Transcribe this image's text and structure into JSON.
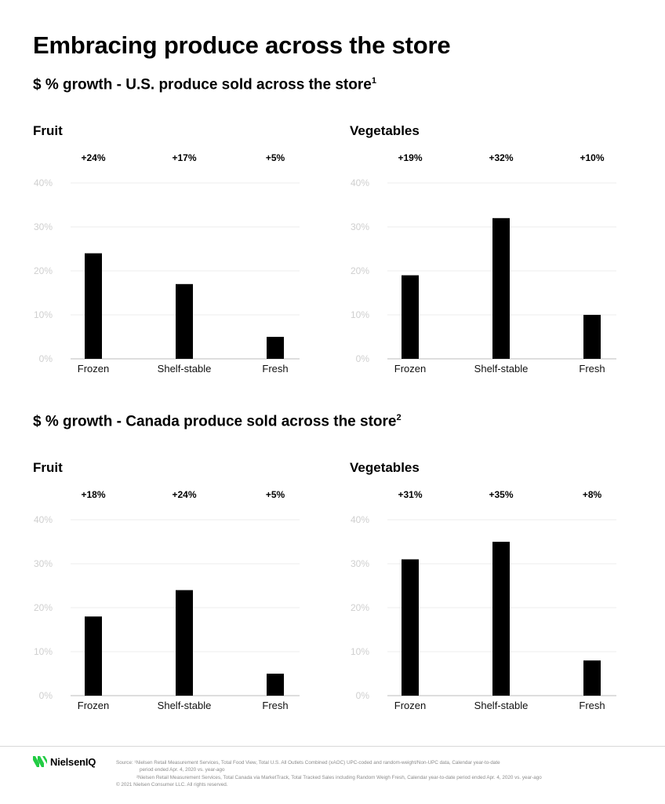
{
  "page": {
    "title": "Embracing produce across the store"
  },
  "sections": [
    {
      "title": "$ % growth - U.S. produce sold across the store",
      "sup": "1"
    },
    {
      "title": "$ % growth - Canada produce sold across the store",
      "sup": "2"
    }
  ],
  "chart_data": [
    {
      "type": "bar",
      "title": "Fruit",
      "categories": [
        "Frozen",
        "Shelf-stable",
        "Fresh"
      ],
      "values": [
        24,
        17,
        5
      ],
      "data_labels": [
        "+24%",
        "+17%",
        "+5%"
      ],
      "yticks": [
        "0%",
        "10%",
        "20%",
        "30%",
        "40%"
      ],
      "ylim": [
        0,
        40
      ],
      "grid": true,
      "color": "#000000"
    },
    {
      "type": "bar",
      "title": "Vegetables",
      "categories": [
        "Frozen",
        "Shelf-stable",
        "Fresh"
      ],
      "values": [
        19,
        32,
        10
      ],
      "data_labels": [
        "+19%",
        "+32%",
        "+10%"
      ],
      "yticks": [
        "0%",
        "10%",
        "20%",
        "30%",
        "40%"
      ],
      "ylim": [
        0,
        40
      ],
      "grid": true,
      "color": "#000000"
    },
    {
      "type": "bar",
      "title": "Fruit",
      "categories": [
        "Frozen",
        "Shelf-stable",
        "Fresh"
      ],
      "values": [
        18,
        24,
        5
      ],
      "data_labels": [
        "+18%",
        "+24%",
        "+5%"
      ],
      "yticks": [
        "0%",
        "10%",
        "20%",
        "30%",
        "40%"
      ],
      "ylim": [
        0,
        40
      ],
      "grid": true,
      "color": "#000000"
    },
    {
      "type": "bar",
      "title": "Vegetables",
      "categories": [
        "Frozen",
        "Shelf-stable",
        "Fresh"
      ],
      "values": [
        31,
        35,
        8
      ],
      "data_labels": [
        "+31%",
        "+35%",
        "+8%"
      ],
      "yticks": [
        "0%",
        "10%",
        "20%",
        "30%",
        "40%"
      ],
      "ylim": [
        0,
        40
      ],
      "grid": true,
      "color": "#000000"
    }
  ],
  "footer": {
    "logo_text": "NielsenIQ",
    "logo_color": "#22cc44",
    "note1_a": "Source: ¹Nielsen Retail Measurement Services, Total Food View, Total U.S. All Outlets Combined (xAOC) UPC-coded and random-weight/Non-UPC data, Calendar year-to-date",
    "note1_b": "period ended Apr. 4, 2020 vs. year-ago",
    "note2": "²Nielsen Retail Measurement Services, Total Canada via MarketTrack, Total Tracked Sales including Random Weigh Fresh, Calendar year-to-date period ended Apr. 4, 2020 vs. year-ago",
    "copyright": "© 2021 Nielsen Consumer LLC. All rights reserved."
  }
}
